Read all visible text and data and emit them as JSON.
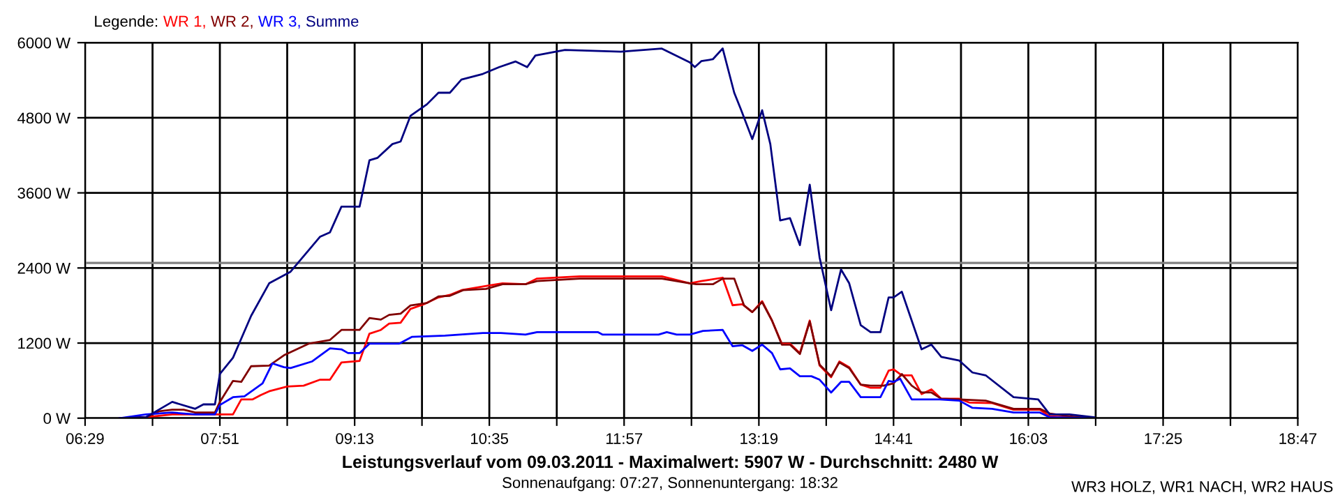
{
  "chart_data": {
    "type": "line",
    "title": "Leistungsverlauf vom 09.03.2011 - Maximalwert: 5907 W - Durchschnitt: 2480 W",
    "subtitle": "Sonnenaufgang: 07:27, Sonnenuntergang: 18:32",
    "legend_title": "Legende:",
    "legend": "top left",
    "grid": true,
    "annotations": [
      "WR3 HOLZ, WR1 NACH, WR2 HAUS"
    ],
    "xlim": [
      6.483,
      18.783
    ],
    "xticks": [
      {
        "value": 6.483,
        "label": "06:29"
      },
      {
        "value": 7.167,
        "label": null
      },
      {
        "value": 7.85,
        "label": "07:51"
      },
      {
        "value": 8.533,
        "label": null
      },
      {
        "value": 9.217,
        "label": "09:13"
      },
      {
        "value": 9.9,
        "label": null
      },
      {
        "value": 10.583,
        "label": "10:35"
      },
      {
        "value": 11.267,
        "label": null
      },
      {
        "value": 11.95,
        "label": "11:57"
      },
      {
        "value": 12.633,
        "label": null
      },
      {
        "value": 13.317,
        "label": "13:19"
      },
      {
        "value": 14.0,
        "label": null
      },
      {
        "value": 14.683,
        "label": "14:41"
      },
      {
        "value": 15.367,
        "label": null
      },
      {
        "value": 16.05,
        "label": "16:03"
      },
      {
        "value": 16.733,
        "label": null
      },
      {
        "value": 17.417,
        "label": "17:25"
      },
      {
        "value": 18.1,
        "label": null
      },
      {
        "value": 18.783,
        "label": "18:47"
      }
    ],
    "ylim": [
      0,
      6000
    ],
    "yticks": [
      {
        "value": 0,
        "label": "0 W"
      },
      {
        "value": 1200,
        "label": "1200 W"
      },
      {
        "value": 2400,
        "label": "2400 W"
      },
      {
        "value": 3600,
        "label": "3600 W"
      },
      {
        "value": 4800,
        "label": "4800 W"
      },
      {
        "value": 6000,
        "label": "6000 W"
      }
    ],
    "ref_lines": [
      {
        "axis": "y",
        "value": 2480,
        "color": "#808080"
      }
    ],
    "series": [
      {
        "name": "WR 1,",
        "color": "#ff0000",
        "x": [
          6.833,
          7.1,
          7.367,
          7.617,
          7.983,
          8.067,
          8.183,
          8.267,
          8.35,
          8.533,
          8.7,
          8.867,
          8.967,
          9.083,
          9.267,
          9.367,
          9.483,
          9.567,
          9.683,
          9.783,
          9.917,
          10.067,
          10.183,
          10.3,
          10.583,
          10.717,
          10.95,
          11.067,
          11.5,
          12.333,
          12.617,
          12.733,
          12.95,
          13.05,
          13.15,
          13.25,
          13.35,
          13.45,
          13.55,
          13.633,
          13.733,
          13.833,
          13.933,
          14.05,
          14.133,
          14.233,
          14.35,
          14.45,
          14.55,
          14.633,
          14.683,
          14.767,
          14.867,
          14.967,
          15.067,
          15.167,
          15.35,
          15.45,
          15.683,
          15.9,
          16.167,
          16.267,
          16.467,
          16.717
        ],
        "values": [
          0,
          15,
          60,
          60,
          60,
          300,
          300,
          370,
          430,
          505,
          520,
          615,
          615,
          890,
          915,
          1350,
          1410,
          1510,
          1525,
          1745,
          1820,
          1930,
          1970,
          2045,
          2120,
          2155,
          2140,
          2230,
          2265,
          2265,
          2155,
          2190,
          2245,
          1805,
          1820,
          1695,
          1870,
          1560,
          1190,
          1190,
          1040,
          1560,
          840,
          655,
          905,
          815,
          535,
          485,
          485,
          760,
          780,
          685,
          685,
          385,
          460,
          310,
          310,
          250,
          240,
          135,
          135,
          30,
          15,
          0
        ]
      },
      {
        "name": "WR 2,",
        "color": "#800000",
        "x": [
          6.833,
          7.1,
          7.233,
          7.367,
          7.483,
          7.6,
          7.8,
          7.85,
          7.983,
          8.067,
          8.167,
          8.35,
          8.5,
          8.75,
          8.967,
          9.083,
          9.267,
          9.367,
          9.483,
          9.567,
          9.683,
          9.783,
          9.95,
          10.067,
          10.183,
          10.317,
          10.55,
          10.717,
          10.95,
          11.067,
          11.5,
          12.333,
          12.617,
          12.683,
          12.85,
          12.95,
          13.067,
          13.167,
          13.25,
          13.35,
          13.45,
          13.55,
          13.633,
          13.733,
          13.833,
          13.933,
          14.05,
          14.133,
          14.233,
          14.35,
          14.45,
          14.583,
          14.683,
          14.767,
          14.867,
          14.967,
          15.067,
          15.167,
          15.35,
          15.617,
          15.9,
          16.167,
          16.267,
          16.467,
          16.717
        ],
        "values": [
          0,
          15,
          110,
          135,
          135,
          90,
          90,
          260,
          595,
          580,
          830,
          840,
          1005,
          1190,
          1250,
          1410,
          1410,
          1600,
          1575,
          1650,
          1670,
          1800,
          1840,
          1945,
          1955,
          2045,
          2065,
          2140,
          2140,
          2190,
          2230,
          2230,
          2155,
          2140,
          2140,
          2230,
          2230,
          1800,
          1695,
          1855,
          1560,
          1175,
          1175,
          1025,
          1545,
          855,
          670,
          890,
          800,
          535,
          520,
          520,
          555,
          705,
          520,
          410,
          410,
          310,
          300,
          280,
          150,
          150,
          75,
          30,
          0
        ]
      },
      {
        "name": "WR 3,",
        "color": "#0000ff",
        "x": [
          6.833,
          7.1,
          7.367,
          7.6,
          7.8,
          7.85,
          7.983,
          8.1,
          8.283,
          8.383,
          8.5,
          8.567,
          8.783,
          8.967,
          9.083,
          9.15,
          9.267,
          9.367,
          9.667,
          9.8,
          10.133,
          10.517,
          10.7,
          10.95,
          11.067,
          11.683,
          11.733,
          12.3,
          12.383,
          12.483,
          12.617,
          12.75,
          12.95,
          13.05,
          13.15,
          13.25,
          13.35,
          13.45,
          13.533,
          13.633,
          13.733,
          13.85,
          13.933,
          14.05,
          14.15,
          14.233,
          14.35,
          14.45,
          14.55,
          14.633,
          14.683,
          14.75,
          14.867,
          15.15,
          15.35,
          15.483,
          15.683,
          15.9,
          16.167,
          16.267,
          16.717
        ],
        "values": [
          0,
          60,
          90,
          60,
          60,
          210,
          335,
          350,
          555,
          875,
          815,
          800,
          905,
          1115,
          1100,
          1040,
          1040,
          1190,
          1190,
          1300,
          1320,
          1360,
          1360,
          1335,
          1375,
          1375,
          1335,
          1335,
          1375,
          1335,
          1335,
          1395,
          1410,
          1150,
          1165,
          1075,
          1175,
          1040,
          780,
          795,
          670,
          670,
          615,
          410,
          580,
          580,
          335,
          335,
          335,
          595,
          580,
          630,
          300,
          300,
          280,
          165,
          150,
          90,
          90,
          15,
          0
        ]
      },
      {
        "name": "Summe",
        "color": "#000080",
        "x": [
          6.833,
          7.1,
          7.367,
          7.6,
          7.683,
          7.8,
          7.85,
          7.983,
          8.167,
          8.35,
          8.567,
          8.867,
          8.967,
          9.083,
          9.267,
          9.367,
          9.45,
          9.6,
          9.683,
          9.783,
          9.95,
          10.067,
          10.183,
          10.3,
          10.517,
          10.683,
          10.85,
          10.967,
          11.05,
          11.35,
          11.917,
          12.333,
          12.617,
          12.667,
          12.733,
          12.85,
          12.95,
          13.067,
          13.133,
          13.25,
          13.35,
          13.433,
          13.533,
          13.633,
          13.733,
          13.833,
          13.933,
          14.05,
          14.15,
          14.233,
          14.35,
          14.45,
          14.55,
          14.633,
          14.683,
          14.767,
          14.867,
          14.967,
          15.067,
          15.167,
          15.35,
          15.483,
          15.617,
          15.9,
          16.15,
          16.267,
          16.467,
          16.717
        ],
        "values": [
          0,
          15,
          260,
          150,
          220,
          220,
          705,
          965,
          1635,
          2155,
          2340,
          2900,
          2970,
          3380,
          3380,
          4120,
          4160,
          4380,
          4420,
          4830,
          5015,
          5200,
          5200,
          5410,
          5500,
          5610,
          5700,
          5610,
          5795,
          5885,
          5855,
          5905,
          5685,
          5610,
          5705,
          5735,
          5907,
          5200,
          4940,
          4460,
          4920,
          4380,
          3160,
          3195,
          2765,
          3730,
          2565,
          1725,
          2375,
          2155,
          1485,
          1375,
          1375,
          1930,
          1930,
          2020,
          1560,
          1100,
          1175,
          980,
          920,
          730,
          685,
          335,
          300,
          60,
          60,
          15
        ]
      }
    ]
  }
}
